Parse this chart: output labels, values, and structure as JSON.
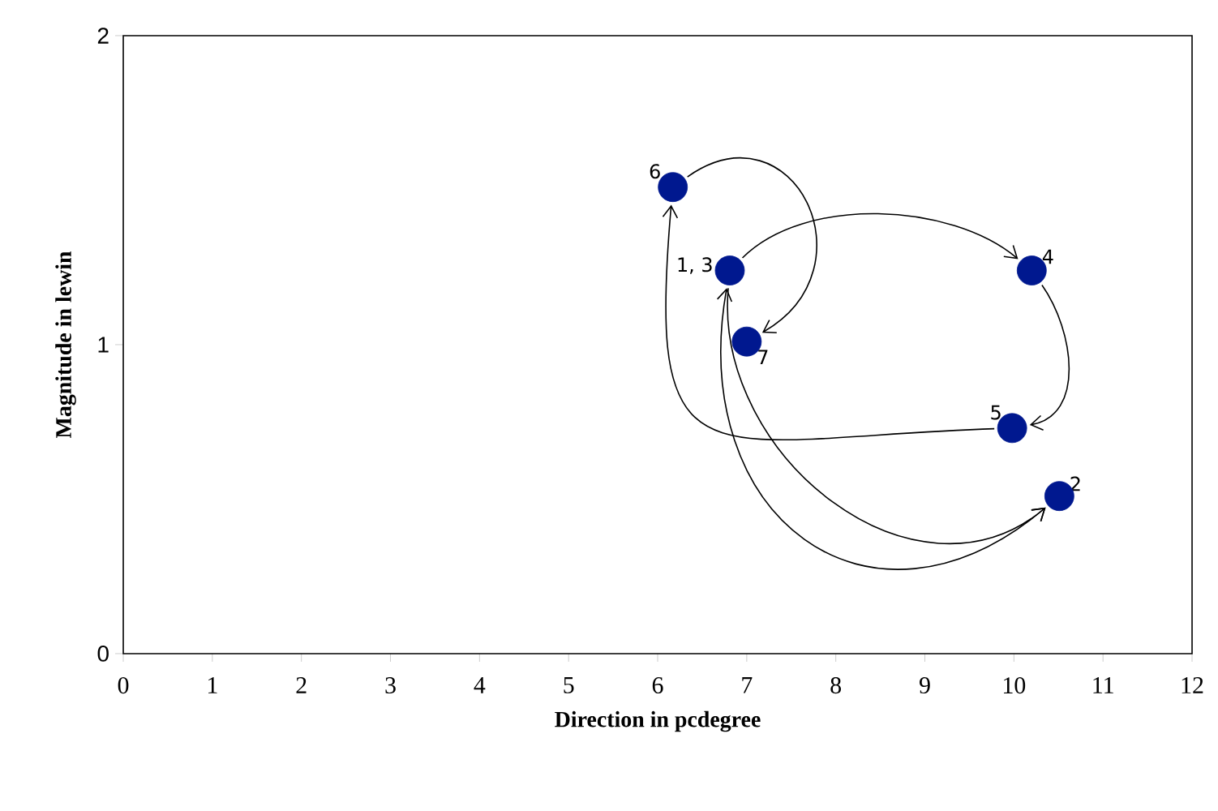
{
  "chart_data": {
    "type": "scatter",
    "xlabel": "Direction in pcdegree",
    "ylabel": "Magnitude in lewin",
    "x": [
      6.81,
      10.51,
      10.2,
      9.98,
      6.17,
      7.0
    ],
    "values": [
      1.24,
      0.51,
      1.24,
      0.73,
      1.51,
      1.01
    ],
    "color": "#00188f",
    "marker": "circle",
    "annotations": [
      {
        "text": "1, 3",
        "x": 6.81,
        "y": 1.24
      },
      {
        "text": "2",
        "x": 10.51,
        "y": 0.51
      },
      {
        "text": "4",
        "x": 10.2,
        "y": 1.24
      },
      {
        "text": "5",
        "x": 9.98,
        "y": 0.73
      },
      {
        "text": "6",
        "x": 6.17,
        "y": 1.51
      },
      {
        "text": "7",
        "x": 7.0,
        "y": 1.01
      }
    ],
    "xlim": [
      0,
      12
    ],
    "xticks": [
      0,
      1,
      2,
      3,
      4,
      5,
      6,
      7,
      8,
      9,
      10,
      11,
      12
    ],
    "ylim": [
      0,
      2
    ],
    "yticks": [
      0,
      1,
      2
    ],
    "grid": false
  }
}
